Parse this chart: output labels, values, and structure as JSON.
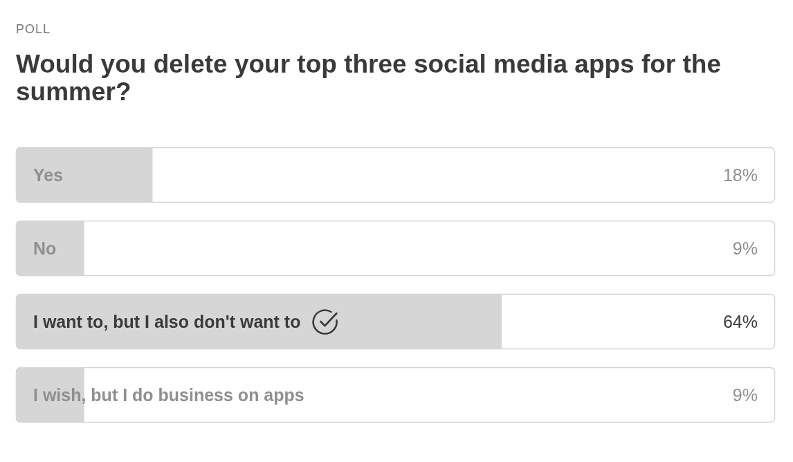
{
  "chart_data": {
    "type": "bar",
    "orientation": "horizontal",
    "subtitle": "POLL",
    "title": "Would you delete your top three social media apps for the summer?",
    "categories": [
      "Yes",
      "No",
      "I want to, but I also don't want to",
      "I wish, but I do business on apps"
    ],
    "values": [
      18,
      9,
      64,
      9
    ],
    "color": "#d6d6d6",
    "xlim": [
      0,
      100
    ],
    "tick_labels": false,
    "value_labels": [
      "18%",
      "9%",
      "64%",
      "9%"
    ]
  }
}
